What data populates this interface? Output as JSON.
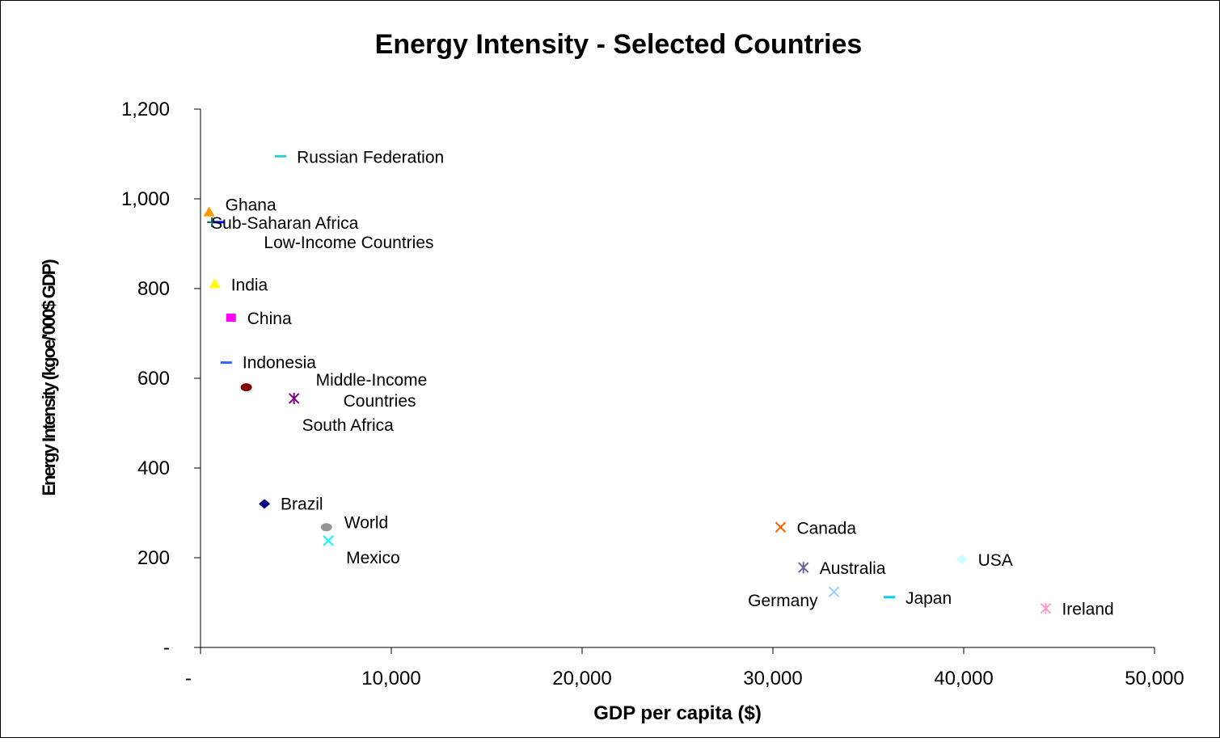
{
  "chart_data": {
    "type": "scatter",
    "title": "Energy Intensity - Selected Countries",
    "xlabel": "GDP per capita ($)",
    "ylabel": "Energy Intensity (kgoe/'000$ GDP)",
    "xlim": [
      0,
      50000
    ],
    "ylim": [
      0,
      1200
    ],
    "xticks": [
      {
        "value": 0,
        "label": "-"
      },
      {
        "value": 10000,
        "label": "10,000"
      },
      {
        "value": 20000,
        "label": "20,000"
      },
      {
        "value": 30000,
        "label": "30,000"
      },
      {
        "value": 40000,
        "label": "40,000"
      },
      {
        "value": 50000,
        "label": "50,000"
      }
    ],
    "yticks": [
      {
        "value": 0,
        "label": "-"
      },
      {
        "value": 200,
        "label": "200"
      },
      {
        "value": 400,
        "label": "400"
      },
      {
        "value": 600,
        "label": "600"
      },
      {
        "value": 800,
        "label": "800"
      },
      {
        "value": 1000,
        "label": "1,000"
      },
      {
        "value": 1200,
        "label": "1,200"
      }
    ],
    "grid": false,
    "legend": "none (points labelled directly)",
    "points": [
      {
        "name": "Russian Federation",
        "x": 4200,
        "y": 1095,
        "marker": "dash",
        "color": "#33cccc",
        "label_side": "right"
      },
      {
        "name": "Ghana",
        "x": 450,
        "y": 970,
        "marker": "triangle",
        "color": "#ff9900",
        "label_side": "right"
      },
      {
        "name": "Sub-Saharan Africa",
        "x": 600,
        "y": 948,
        "marker": "plus",
        "color": "#006666",
        "label_side": "right"
      },
      {
        "name": "Low-Income Countries",
        "x": 950,
        "y": 948,
        "marker": "dash",
        "color": "#0000ff",
        "label_side": "right"
      },
      {
        "name": "India",
        "x": 750,
        "y": 810,
        "marker": "triangle",
        "color": "#ffff00",
        "label_side": "right"
      },
      {
        "name": "China",
        "x": 1600,
        "y": 735,
        "marker": "square",
        "color": "#ff00ff",
        "label_side": "right"
      },
      {
        "name": "Indonesia",
        "x": 1350,
        "y": 635,
        "marker": "dash",
        "color": "#3366ff",
        "label_side": "right"
      },
      {
        "name": "Middle-Income Countries",
        "x": 2400,
        "y": 580,
        "marker": "circle",
        "color": "#800000",
        "label_side": "right"
      },
      {
        "name": "South Africa",
        "x": 4900,
        "y": 555,
        "marker": "star",
        "color": "#800080",
        "label_side": "below"
      },
      {
        "name": "Brazil",
        "x": 3350,
        "y": 320,
        "marker": "diamond",
        "color": "#000080",
        "label_side": "right"
      },
      {
        "name": "World",
        "x": 6600,
        "y": 268,
        "marker": "circle",
        "color": "#969696",
        "label_side": "right"
      },
      {
        "name": "Mexico",
        "x": 6700,
        "y": 238,
        "marker": "x",
        "color": "#00ffff",
        "label_side": "below"
      },
      {
        "name": "Canada",
        "x": 30400,
        "y": 268,
        "marker": "x",
        "color": "#ff6600",
        "label_side": "right"
      },
      {
        "name": "Australia",
        "x": 31600,
        "y": 178,
        "marker": "star",
        "color": "#666699",
        "label_side": "right"
      },
      {
        "name": "USA",
        "x": 39900,
        "y": 196,
        "marker": "diamond",
        "color": "#ccffff",
        "label_side": "right"
      },
      {
        "name": "Germany",
        "x": 33200,
        "y": 124,
        "marker": "x",
        "color": "#99ccff",
        "label_side": "left"
      },
      {
        "name": "Japan",
        "x": 36100,
        "y": 112,
        "marker": "dash",
        "color": "#00ccff",
        "label_side": "right"
      },
      {
        "name": "Ireland",
        "x": 44300,
        "y": 87,
        "marker": "star",
        "color": "#ff99cc",
        "label_side": "right"
      }
    ]
  }
}
